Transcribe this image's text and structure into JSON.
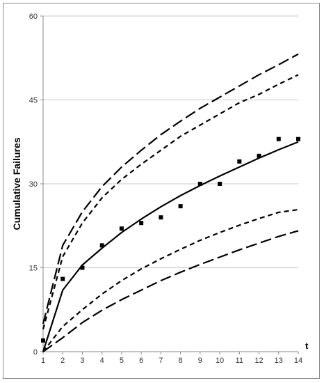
{
  "chart_data": {
    "type": "scatter",
    "title": "",
    "xlabel": "t",
    "ylabel": "Cumulative Failures",
    "xlim": [
      1,
      14
    ],
    "ylim": [
      0,
      60
    ],
    "x_ticks": [
      "1",
      "2",
      "3",
      "4",
      "5",
      "6",
      "7",
      "8",
      "9",
      "10",
      "11",
      "12",
      "13",
      "14"
    ],
    "y_ticks": [
      "0",
      "15",
      "30",
      "45",
      "60"
    ],
    "grid": "horizontal",
    "legend": "none",
    "x": [
      1,
      2,
      3,
      4,
      5,
      6,
      7,
      8,
      9,
      10,
      11,
      12,
      13,
      14
    ],
    "observed": [
      2,
      13,
      15,
      19,
      22,
      23,
      24,
      26,
      30,
      30,
      34,
      35,
      38,
      38
    ],
    "series": [
      {
        "style": "long-dash",
        "values": [
          5,
          19,
          25,
          29.5,
          33,
          36,
          38.8,
          41.2,
          43.5,
          45.5,
          47.5,
          49.5,
          51.3,
          53.2
        ]
      },
      {
        "style": "short-dash",
        "values": [
          4,
          17,
          23,
          27.5,
          30.8,
          33.5,
          36,
          38.5,
          40.5,
          42.5,
          44.5,
          46,
          47.8,
          49.5
        ]
      },
      {
        "style": "solid",
        "values": [
          0,
          11,
          15.5,
          18.5,
          21.3,
          23.7,
          25.9,
          27.9,
          29.7,
          31.4,
          33,
          34.6,
          36.1,
          37.5
        ]
      },
      {
        "style": "short-dash",
        "values": [
          0,
          4.5,
          7.5,
          10.3,
          12.7,
          14.8,
          16.6,
          18.3,
          19.9,
          21.3,
          22.6,
          23.8,
          24.9,
          25.4
        ]
      },
      {
        "style": "long-dash",
        "values": [
          0,
          2.5,
          5.2,
          7.4,
          9.3,
          11,
          12.7,
          14.2,
          15.6,
          16.9,
          18.2,
          19.4,
          20.6,
          21.6
        ]
      }
    ]
  }
}
